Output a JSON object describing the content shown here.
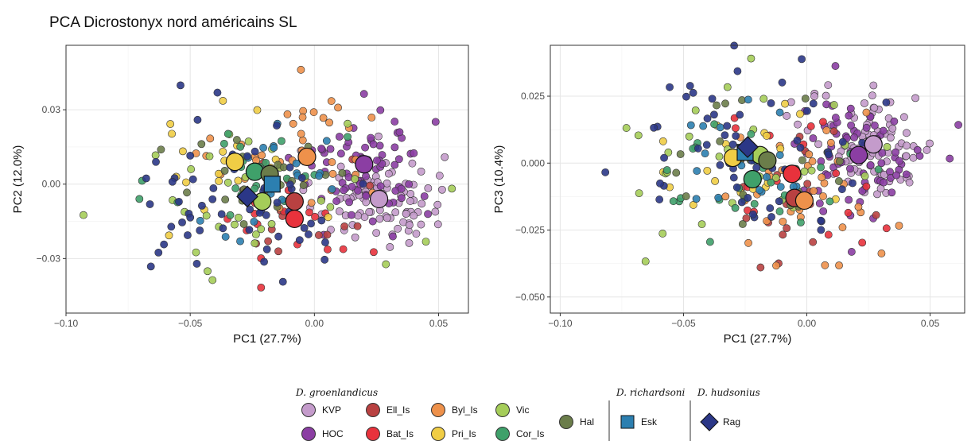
{
  "title": "PCA Dicrostonyx nord américains SL",
  "colors": {
    "KVP": "#c49bcb",
    "HOC": "#8b3ea3",
    "Ell_Is": "#b94141",
    "Bat_Is": "#e8323c",
    "Byl_Is": "#ee914b",
    "Pri_Is": "#f0cd45",
    "Vic": "#a5cd59",
    "Cor_Is": "#3fa06a",
    "Hal": "#6b7d4a",
    "Esk": "#2c7fb0",
    "Rag": "#2b3787"
  },
  "chart_data": [
    {
      "type": "scatter",
      "xlabel": "PC1 (27.7%)",
      "ylabel": "PC2 (12.0%)",
      "xlim": [
        -0.1,
        0.062
      ],
      "ylim": [
        -0.052,
        0.056
      ],
      "xticks": [
        -0.1,
        -0.05,
        0.0,
        0.05
      ],
      "xtick_labels": [
        "−0.10",
        "−0.05",
        "0.00",
        "0.05"
      ],
      "yticks": [
        -0.03,
        0.0,
        0.03
      ],
      "ytick_labels": [
        "−0.03",
        "0.00",
        "0.03"
      ],
      "centroids": [
        {
          "group": "KVP",
          "x": 0.026,
          "y": -0.006
        },
        {
          "group": "HOC",
          "x": 0.02,
          "y": 0.008
        },
        {
          "group": "Ell_Is",
          "x": -0.008,
          "y": -0.007
        },
        {
          "group": "Bat_Is",
          "x": -0.008,
          "y": -0.014
        },
        {
          "group": "Byl_Is",
          "x": -0.003,
          "y": 0.011
        },
        {
          "group": "Pri_Is",
          "x": -0.032,
          "y": 0.009
        },
        {
          "group": "Vic",
          "x": -0.021,
          "y": -0.007
        },
        {
          "group": "Cor_Is",
          "x": -0.024,
          "y": 0.005
        },
        {
          "group": "Hal",
          "x": -0.018,
          "y": 0.004
        },
        {
          "group": "Esk",
          "x": -0.017,
          "y": 0.0
        },
        {
          "group": "Rag",
          "x": -0.027,
          "y": -0.005
        }
      ]
    },
    {
      "type": "scatter",
      "xlabel": "PC1 (27.7%)",
      "ylabel": "PC3 (10.4%)",
      "xlim": [
        -0.104,
        0.064
      ],
      "ylim": [
        -0.056,
        0.044
      ],
      "xticks": [
        -0.1,
        -0.05,
        0.0,
        0.05
      ],
      "xtick_labels": [
        "−0.10",
        "−0.05",
        "0.00",
        "0.05"
      ],
      "yticks": [
        -0.05,
        -0.025,
        0.0,
        0.025
      ],
      "ytick_labels": [
        "−0.050",
        "−0.025",
        "0.000",
        "0.025"
      ],
      "centroids": [
        {
          "group": "KVP",
          "x": 0.027,
          "y": 0.007
        },
        {
          "group": "HOC",
          "x": 0.021,
          "y": 0.003
        },
        {
          "group": "Ell_Is",
          "x": -0.005,
          "y": -0.013
        },
        {
          "group": "Bat_Is",
          "x": -0.006,
          "y": -0.004
        },
        {
          "group": "Byl_Is",
          "x": -0.001,
          "y": -0.014
        },
        {
          "group": "Pri_Is",
          "x": -0.03,
          "y": 0.002
        },
        {
          "group": "Vic",
          "x": -0.019,
          "y": 0.003
        },
        {
          "group": "Cor_Is",
          "x": -0.022,
          "y": -0.006
        },
        {
          "group": "Hal",
          "x": -0.016,
          "y": 0.001
        },
        {
          "group": "Esk",
          "x": -0.025,
          "y": 0.004
        },
        {
          "group": "Rag",
          "x": -0.024,
          "y": 0.006
        }
      ]
    }
  ],
  "legend": {
    "groups": [
      {
        "title": "D. groenlandicus",
        "items": [
          {
            "label": "KVP",
            "shape": "circle"
          },
          {
            "label": "HOC",
            "shape": "circle"
          },
          {
            "label": "Ell_Is",
            "shape": "circle"
          },
          {
            "label": "Bat_Is",
            "shape": "circle"
          },
          {
            "label": "Byl_Is",
            "shape": "circle"
          },
          {
            "label": "Pri_Is",
            "shape": "circle"
          },
          {
            "label": "Vic",
            "shape": "circle"
          },
          {
            "label": "Cor_Is",
            "shape": "circle"
          },
          {
            "label": "Hal",
            "shape": "circle"
          }
        ]
      },
      {
        "title": "D. richardsoni",
        "items": [
          {
            "label": "Esk",
            "shape": "square"
          }
        ]
      },
      {
        "title": "D. hudsonius",
        "items": [
          {
            "label": "Rag",
            "shape": "diamond"
          }
        ]
      }
    ]
  }
}
